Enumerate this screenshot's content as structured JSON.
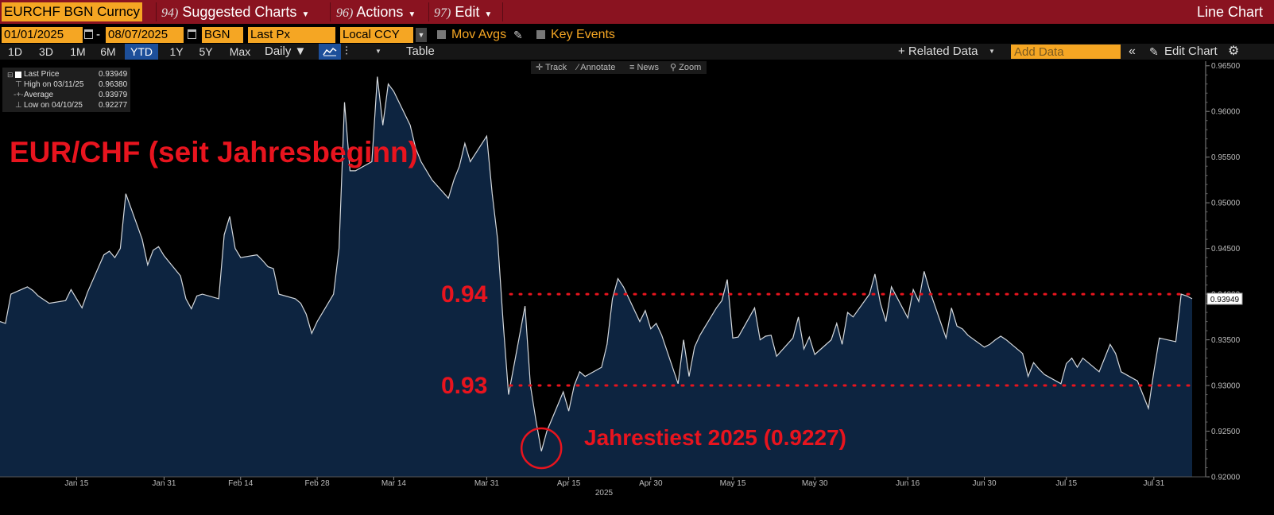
{
  "header": {
    "ticker": "EURCHF BGN Curncy",
    "menus": [
      {
        "num": "94)",
        "label": "Suggested Charts"
      },
      {
        "num": "96)",
        "label": "Actions"
      },
      {
        "num": "97)",
        "label": "Edit"
      }
    ],
    "chart_type": "Line Chart"
  },
  "controls": {
    "start_date": "01/01/2025",
    "dash": "-",
    "end_date": "08/07/2025",
    "source": "BGN",
    "field": "Last Px",
    "currency": "Local CCY",
    "mov_avgs": "Mov Avgs",
    "key_events": "Key Events"
  },
  "toolbar": {
    "ranges": [
      "1D",
      "3D",
      "1M",
      "6M",
      "YTD",
      "1Y",
      "5Y",
      "Max"
    ],
    "active_range": "YTD",
    "frequency": "Daily ▼",
    "table": "Table",
    "related_data": "+ Related Data",
    "add_data_placeholder": "Add Data",
    "edit_chart": "Edit Chart"
  },
  "chart_tools": [
    "Track",
    "Annotate",
    "News",
    "Zoom"
  ],
  "legend": [
    {
      "label": "Last Price",
      "value": "0.93949"
    },
    {
      "label": "High on 03/11/25",
      "value": "0.96380"
    },
    {
      "label": "Average",
      "value": "0.93979"
    },
    {
      "label": "Low on 04/10/25",
      "value": "0.92277"
    }
  ],
  "colors": {
    "background": "#000000",
    "line": "#d4d8dc",
    "fill": "#0d2440",
    "annotation": "#e8141e",
    "header": "#8a1320",
    "field": "#f5a623",
    "active": "#1d4f9a"
  },
  "chart_data": {
    "type": "area",
    "title": "EUR/CHF (seit Jahresbeginn)",
    "xlabel": "2025",
    "ylabel": "",
    "x_ticks": [
      "Jan 15",
      "Jan 31",
      "Feb 14",
      "Feb 28",
      "Mar 14",
      "Mar 31",
      "Apr 15",
      "Apr 30",
      "May 15",
      "May 30",
      "Jun 16",
      "Jun 30",
      "Jul 15",
      "Jul 31"
    ],
    "y_ticks": [
      "0.92000",
      "0.92500",
      "0.93000",
      "0.93500",
      "0.94000",
      "0.94500",
      "0.95000",
      "0.95500",
      "0.96000",
      "0.96500"
    ],
    "ylim": [
      0.92,
      0.9655
    ],
    "last_value_label": "0.93949",
    "reference_lines": [
      {
        "value": 0.94,
        "label": "0.94"
      },
      {
        "value": 0.93,
        "label": "0.93"
      }
    ],
    "annotation": {
      "label": "Jahrestiest 2025 (0.9227)",
      "date": "2025-04-10",
      "value": 0.9227
    },
    "series": [
      {
        "values": [
          [
            "2025-01-01",
            0.937
          ],
          [
            "2025-01-02",
            0.9368
          ],
          [
            "2025-01-03",
            0.94
          ],
          [
            "2025-01-06",
            0.9408
          ],
          [
            "2025-01-07",
            0.9404
          ],
          [
            "2025-01-08",
            0.9398
          ],
          [
            "2025-01-09",
            0.9394
          ],
          [
            "2025-01-10",
            0.939
          ],
          [
            "2025-01-13",
            0.9393
          ],
          [
            "2025-01-14",
            0.9405
          ],
          [
            "2025-01-15",
            0.9395
          ],
          [
            "2025-01-16",
            0.9385
          ],
          [
            "2025-01-17",
            0.9402
          ],
          [
            "2025-01-20",
            0.9443
          ],
          [
            "2025-01-21",
            0.9447
          ],
          [
            "2025-01-22",
            0.944
          ],
          [
            "2025-01-23",
            0.945
          ],
          [
            "2025-01-24",
            0.951
          ],
          [
            "2025-01-27",
            0.946
          ],
          [
            "2025-01-28",
            0.9432
          ],
          [
            "2025-01-29",
            0.9448
          ],
          [
            "2025-01-30",
            0.9452
          ],
          [
            "2025-01-31",
            0.9442
          ],
          [
            "2025-02-03",
            0.942
          ],
          [
            "2025-02-04",
            0.9395
          ],
          [
            "2025-02-05",
            0.9384
          ],
          [
            "2025-02-06",
            0.9398
          ],
          [
            "2025-02-07",
            0.94
          ],
          [
            "2025-02-10",
            0.9395
          ],
          [
            "2025-02-11",
            0.9465
          ],
          [
            "2025-02-12",
            0.9485
          ],
          [
            "2025-02-13",
            0.945
          ],
          [
            "2025-02-14",
            0.944
          ],
          [
            "2025-02-17",
            0.9443
          ],
          [
            "2025-02-18",
            0.9437
          ],
          [
            "2025-02-19",
            0.943
          ],
          [
            "2025-02-20",
            0.9428
          ],
          [
            "2025-02-21",
            0.94
          ],
          [
            "2025-02-24",
            0.9395
          ],
          [
            "2025-02-25",
            0.939
          ],
          [
            "2025-02-26",
            0.9378
          ],
          [
            "2025-02-27",
            0.9357
          ],
          [
            "2025-02-28",
            0.937
          ],
          [
            "2025-03-03",
            0.94
          ],
          [
            "2025-03-04",
            0.945
          ],
          [
            "2025-03-05",
            0.961
          ],
          [
            "2025-03-06",
            0.9535
          ],
          [
            "2025-03-07",
            0.9535
          ],
          [
            "2025-03-10",
            0.9545
          ],
          [
            "2025-03-11",
            0.9638
          ],
          [
            "2025-03-12",
            0.9585
          ],
          [
            "2025-03-13",
            0.963
          ],
          [
            "2025-03-14",
            0.9622
          ],
          [
            "2025-03-17",
            0.9585
          ],
          [
            "2025-03-18",
            0.956
          ],
          [
            "2025-03-19",
            0.9545
          ],
          [
            "2025-03-20",
            0.9535
          ],
          [
            "2025-03-21",
            0.9525
          ],
          [
            "2025-03-24",
            0.9505
          ],
          [
            "2025-03-25",
            0.9525
          ],
          [
            "2025-03-26",
            0.954
          ],
          [
            "2025-03-27",
            0.9565
          ],
          [
            "2025-03-28",
            0.9545
          ],
          [
            "2025-03-31",
            0.9573
          ],
          [
            "2025-04-01",
            0.951
          ],
          [
            "2025-04-02",
            0.946
          ],
          [
            "2025-04-03",
            0.937
          ],
          [
            "2025-04-04",
            0.929
          ],
          [
            "2025-04-07",
            0.9387
          ],
          [
            "2025-04-08",
            0.93
          ],
          [
            "2025-04-09",
            0.9262
          ],
          [
            "2025-04-10",
            0.9228
          ],
          [
            "2025-04-11",
            0.925
          ],
          [
            "2025-04-14",
            0.9293
          ],
          [
            "2025-04-15",
            0.9272
          ],
          [
            "2025-04-16",
            0.93
          ],
          [
            "2025-04-17",
            0.9315
          ],
          [
            "2025-04-18",
            0.931
          ],
          [
            "2025-04-21",
            0.932
          ],
          [
            "2025-04-22",
            0.9345
          ],
          [
            "2025-04-23",
            0.9395
          ],
          [
            "2025-04-24",
            0.9417
          ],
          [
            "2025-04-25",
            0.9408
          ],
          [
            "2025-04-28",
            0.937
          ],
          [
            "2025-04-29",
            0.9382
          ],
          [
            "2025-04-30",
            0.9362
          ],
          [
            "2025-05-01",
            0.9368
          ],
          [
            "2025-05-02",
            0.9355
          ],
          [
            "2025-05-05",
            0.9302
          ],
          [
            "2025-05-06",
            0.935
          ],
          [
            "2025-05-07",
            0.931
          ],
          [
            "2025-05-08",
            0.9342
          ],
          [
            "2025-05-09",
            0.9355
          ],
          [
            "2025-05-12",
            0.9385
          ],
          [
            "2025-05-13",
            0.9393
          ],
          [
            "2025-05-14",
            0.9416
          ],
          [
            "2025-05-15",
            0.9352
          ],
          [
            "2025-05-16",
            0.9353
          ],
          [
            "2025-05-19",
            0.9385
          ],
          [
            "2025-05-20",
            0.935
          ],
          [
            "2025-05-21",
            0.9354
          ],
          [
            "2025-05-22",
            0.9355
          ],
          [
            "2025-05-23",
            0.9332
          ],
          [
            "2025-05-26",
            0.9352
          ],
          [
            "2025-05-27",
            0.9375
          ],
          [
            "2025-05-28",
            0.934
          ],
          [
            "2025-05-29",
            0.9353
          ],
          [
            "2025-05-30",
            0.9334
          ],
          [
            "2025-06-02",
            0.935
          ],
          [
            "2025-06-03",
            0.9368
          ],
          [
            "2025-06-04",
            0.9345
          ],
          [
            "2025-06-05",
            0.938
          ],
          [
            "2025-06-06",
            0.9375
          ],
          [
            "2025-06-09",
            0.94
          ],
          [
            "2025-06-10",
            0.9422
          ],
          [
            "2025-06-11",
            0.939
          ],
          [
            "2025-06-12",
            0.937
          ],
          [
            "2025-06-13",
            0.9408
          ],
          [
            "2025-06-16",
            0.9374
          ],
          [
            "2025-06-17",
            0.9405
          ],
          [
            "2025-06-18",
            0.9392
          ],
          [
            "2025-06-19",
            0.9425
          ],
          [
            "2025-06-20",
            0.9404
          ],
          [
            "2025-06-23",
            0.9352
          ],
          [
            "2025-06-24",
            0.9385
          ],
          [
            "2025-06-25",
            0.9365
          ],
          [
            "2025-06-26",
            0.9362
          ],
          [
            "2025-06-27",
            0.9355
          ],
          [
            "2025-06-30",
            0.9342
          ],
          [
            "2025-07-01",
            0.9345
          ],
          [
            "2025-07-02",
            0.935
          ],
          [
            "2025-07-03",
            0.9354
          ],
          [
            "2025-07-04",
            0.935
          ],
          [
            "2025-07-07",
            0.9335
          ],
          [
            "2025-07-08",
            0.931
          ],
          [
            "2025-07-09",
            0.9325
          ],
          [
            "2025-07-10",
            0.9318
          ],
          [
            "2025-07-11",
            0.9312
          ],
          [
            "2025-07-14",
            0.9302
          ],
          [
            "2025-07-15",
            0.9324
          ],
          [
            "2025-07-16",
            0.933
          ],
          [
            "2025-07-17",
            0.932
          ],
          [
            "2025-07-18",
            0.933
          ],
          [
            "2025-07-21",
            0.9315
          ],
          [
            "2025-07-22",
            0.933
          ],
          [
            "2025-07-23",
            0.9345
          ],
          [
            "2025-07-24",
            0.9335
          ],
          [
            "2025-07-25",
            0.9315
          ],
          [
            "2025-07-28",
            0.9305
          ],
          [
            "2025-07-29",
            0.929
          ],
          [
            "2025-07-30",
            0.9275
          ],
          [
            "2025-07-31",
            0.9315
          ],
          [
            "2025-08-01",
            0.9352
          ],
          [
            "2025-08-04",
            0.9348
          ],
          [
            "2025-08-05",
            0.94
          ],
          [
            "2025-08-06",
            0.9398
          ],
          [
            "2025-08-07",
            0.9395
          ]
        ]
      }
    ]
  }
}
